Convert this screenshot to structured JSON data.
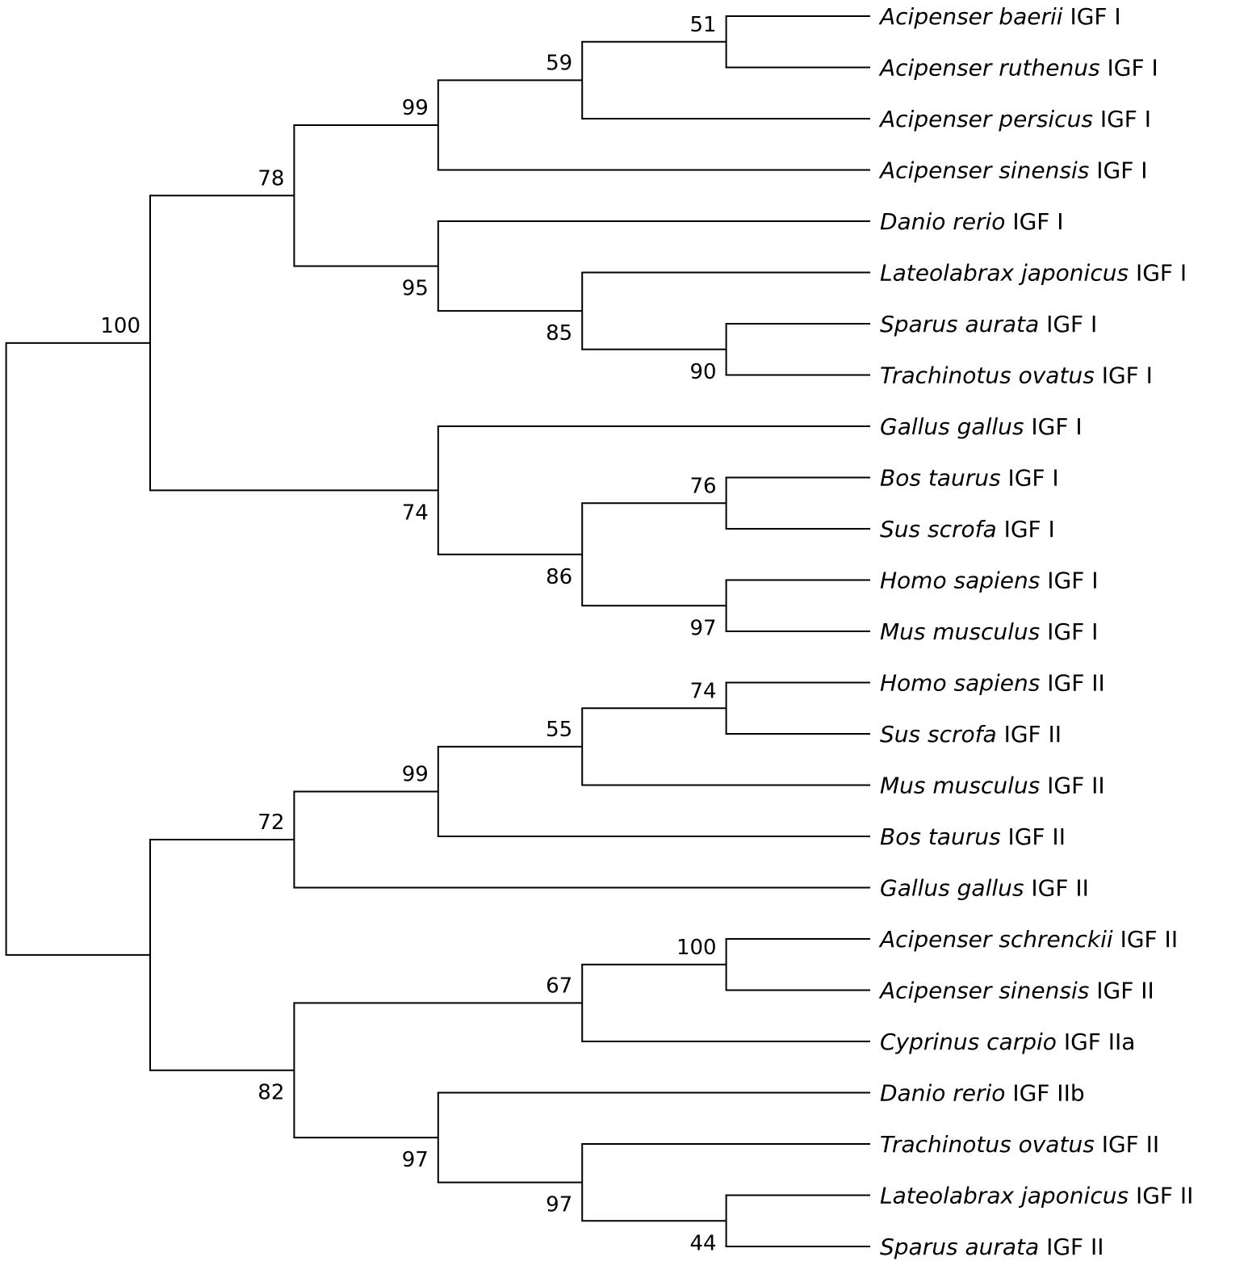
{
  "colors": {
    "branch": "#000000",
    "text": "#000000",
    "highlight": "#e8321e"
  },
  "tree": {
    "children": [
      {
        "support": "100",
        "children": [
          {
            "support": "78",
            "children": [
              {
                "support": "99",
                "children": [
                  {
                    "support": "59",
                    "children": [
                      {
                        "support": "51",
                        "children": [
                          {
                            "species": "Acipenser baerii",
                            "gene": "IGF I"
                          },
                          {
                            "species": "Acipenser ruthenus",
                            "gene": "IGF I"
                          }
                        ]
                      },
                      {
                        "species": "Acipenser persicus",
                        "gene": "IGF I"
                      }
                    ]
                  },
                  {
                    "species": "Acipenser sinensis",
                    "gene": "IGF I",
                    "highlight": true
                  }
                ]
              },
              {
                "support": "95",
                "children": [
                  {
                    "species": "Danio rerio",
                    "gene": "IGF I"
                  },
                  {
                    "support": "85",
                    "children": [
                      {
                        "species": "Lateolabrax japonicus",
                        "gene": "IGF I"
                      },
                      {
                        "support": "90",
                        "children": [
                          {
                            "species": "Sparus aurata",
                            "gene": "IGF I"
                          },
                          {
                            "species": "Trachinotus ovatus",
                            "gene": "IGF I"
                          }
                        ]
                      }
                    ]
                  }
                ]
              }
            ]
          },
          {
            "support": "74",
            "children": [
              {
                "species": "Gallus gallus",
                "gene": "IGF I"
              },
              {
                "support": "86",
                "children": [
                  {
                    "support": "76",
                    "children": [
                      {
                        "species": "Bos taurus",
                        "gene": "IGF I"
                      },
                      {
                        "species": "Sus scrofa",
                        "gene": "IGF I"
                      }
                    ]
                  },
                  {
                    "support": "97",
                    "children": [
                      {
                        "species": "Homo sapiens",
                        "gene": "IGF I"
                      },
                      {
                        "species": "Mus musculus",
                        "gene": "IGF I"
                      }
                    ]
                  }
                ]
              }
            ]
          }
        ]
      },
      {
        "children": [
          {
            "support": "72",
            "children": [
              {
                "support": "99",
                "children": [
                  {
                    "support": "55",
                    "children": [
                      {
                        "support": "74",
                        "children": [
                          {
                            "species": "Homo sapiens",
                            "gene": "IGF II"
                          },
                          {
                            "species": "Sus scrofa",
                            "gene": "IGF II"
                          }
                        ]
                      },
                      {
                        "species": "Mus musculus",
                        "gene": "IGF II"
                      }
                    ]
                  },
                  {
                    "species": "Bos taurus",
                    "gene": "IGF II"
                  }
                ]
              },
              {
                "species": "Gallus gallus",
                "gene": "IGF II"
              }
            ]
          },
          {
            "support": "82",
            "children": [
              {
                "support": "67",
                "children": [
                  {
                    "support": "100",
                    "children": [
                      {
                        "species": "Acipenser schrenckii",
                        "gene": "IGF II"
                      },
                      {
                        "species": "Acipenser sinensis",
                        "gene": "IGF II",
                        "highlight": true
                      }
                    ]
                  },
                  {
                    "species": "Cyprinus carpio",
                    "gene": "IGF IIa"
                  }
                ]
              },
              {
                "support": "97",
                "children": [
                  {
                    "species": "Danio rerio",
                    "gene": "IGF IIb"
                  },
                  {
                    "support": "97",
                    "children": [
                      {
                        "species": "Trachinotus ovatus",
                        "gene": "IGF II"
                      },
                      {
                        "support": "44",
                        "children": [
                          {
                            "species": "Lateolabrax japonicus",
                            "gene": "IGF II"
                          },
                          {
                            "species": "Sparus aurata",
                            "gene": "IGF II"
                          }
                        ]
                      }
                    ]
                  }
                ]
              }
            ]
          }
        ]
      }
    ]
  }
}
